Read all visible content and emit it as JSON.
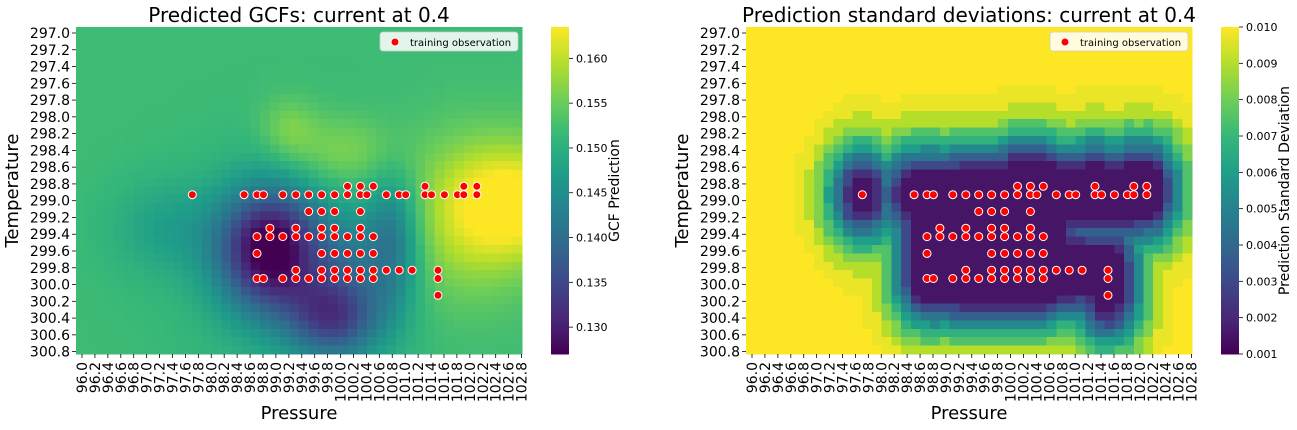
{
  "chart_data": [
    {
      "type": "heatmap",
      "title": "Predicted GCFs: current at 0.4",
      "xlabel": "Pressure",
      "ylabel": "Temperature",
      "x_ticks": [
        "96.0",
        "96.2",
        "96.4",
        "96.6",
        "96.8",
        "97.0",
        "97.2",
        "97.4",
        "97.6",
        "97.8",
        "98.0",
        "98.2",
        "98.4",
        "98.6",
        "98.8",
        "99.0",
        "99.2",
        "99.4",
        "99.6",
        "99.8",
        "100.0",
        "100.2",
        "100.4",
        "100.6",
        "100.8",
        "101.0",
        "101.2",
        "101.4",
        "101.6",
        "101.8",
        "102.0",
        "102.2",
        "102.4",
        "102.6",
        "102.8"
      ],
      "y_ticks": [
        "297.0",
        "297.2",
        "297.4",
        "297.6",
        "297.8",
        "298.0",
        "298.2",
        "298.4",
        "298.6",
        "298.8",
        "299.0",
        "299.2",
        "299.4",
        "299.6",
        "299.8",
        "300.0",
        "300.2",
        "300.4",
        "300.6",
        "300.8"
      ],
      "x_range": [
        96.0,
        102.9
      ],
      "y_range": [
        297.0,
        300.9
      ],
      "colormap": "viridis",
      "colorbar": {
        "label": "GCF Prediction",
        "range": [
          0.127,
          0.1635
        ],
        "ticks": [
          "0.130",
          "0.135",
          "0.140",
          "0.145",
          "0.150",
          "0.155",
          "0.160"
        ],
        "tick_values": [
          0.13,
          0.135,
          0.14,
          0.145,
          0.15,
          0.155,
          0.16
        ]
      },
      "legend": {
        "label": "training observation",
        "placement": "top-right"
      },
      "field_model": {
        "base": 0.152,
        "bumps": [
          {
            "px": 99.0,
            "ty": 299.65,
            "sx": 0.55,
            "sy": 0.5,
            "amp": -0.024
          },
          {
            "px": 100.0,
            "ty": 300.45,
            "sx": 0.5,
            "sy": 0.35,
            "amp": -0.016
          },
          {
            "px": 99.6,
            "ty": 299.9,
            "sx": 1.2,
            "sy": 0.9,
            "amp": -0.004
          },
          {
            "px": 97.4,
            "ty": 299.4,
            "sx": 0.6,
            "sy": 0.4,
            "amp": -0.004
          },
          {
            "px": 102.8,
            "ty": 299.1,
            "sx": 0.7,
            "sy": 0.5,
            "amp": 0.012
          },
          {
            "px": 101.9,
            "ty": 299.35,
            "sx": 0.7,
            "sy": 0.7,
            "amp": 0.006
          },
          {
            "px": 100.1,
            "ty": 298.5,
            "sx": 0.6,
            "sy": 0.3,
            "amp": 0.005
          },
          {
            "px": 99.3,
            "ty": 298.2,
            "sx": 0.3,
            "sy": 0.25,
            "amp": 0.004
          },
          {
            "px": 100.9,
            "ty": 299.55,
            "sx": 0.3,
            "sy": 0.55,
            "amp": -0.01
          },
          {
            "px": 100.2,
            "ty": 299.7,
            "sx": 0.35,
            "sy": 0.3,
            "amp": -0.004
          }
        ]
      }
    },
    {
      "type": "heatmap",
      "title": "Prediction standard deviations: current at 0.4",
      "xlabel": "Pressure",
      "ylabel": "Temperature",
      "x_ticks": [
        "96.0",
        "96.2",
        "96.4",
        "96.6",
        "96.8",
        "97.0",
        "97.2",
        "97.4",
        "97.6",
        "97.8",
        "98.0",
        "98.2",
        "98.4",
        "98.6",
        "98.8",
        "99.0",
        "99.2",
        "99.4",
        "99.6",
        "99.8",
        "100.0",
        "100.2",
        "100.4",
        "100.6",
        "100.8",
        "101.0",
        "101.2",
        "101.4",
        "101.6",
        "101.8",
        "102.0",
        "102.2",
        "102.4",
        "102.6",
        "102.8"
      ],
      "y_ticks": [
        "297.0",
        "297.2",
        "297.4",
        "297.6",
        "297.8",
        "298.0",
        "298.2",
        "298.4",
        "298.6",
        "298.8",
        "299.0",
        "299.2",
        "299.4",
        "299.6",
        "299.8",
        "300.0",
        "300.2",
        "300.4",
        "300.6",
        "300.8"
      ],
      "x_range": [
        96.0,
        102.9
      ],
      "y_range": [
        297.0,
        300.9
      ],
      "colormap": "viridis",
      "colorbar": {
        "label": "Prediction Standard Deviation",
        "range": [
          0.001,
          0.01
        ],
        "ticks": [
          "0.001",
          "0.002",
          "0.003",
          "0.004",
          "0.005",
          "0.006",
          "0.007",
          "0.008",
          "0.009",
          "0.010"
        ],
        "tick_values": [
          0.001,
          0.002,
          0.003,
          0.004,
          0.005,
          0.006,
          0.007,
          0.008,
          0.009,
          0.01
        ]
      },
      "legend": {
        "label": "training observation",
        "placement": "top-right"
      },
      "std_model": {
        "length_scale": 0.42,
        "floor": 0.0012,
        "cap": 0.0105,
        "step": 0.00075
      }
    }
  ],
  "training_observations": [
    {
      "p": 97.8,
      "t": 299.0
    },
    {
      "p": 98.6,
      "t": 299.0
    },
    {
      "p": 98.8,
      "t": 299.0
    },
    {
      "p": 98.9,
      "t": 299.0
    },
    {
      "p": 99.2,
      "t": 299.0
    },
    {
      "p": 99.4,
      "t": 299.0
    },
    {
      "p": 99.6,
      "t": 299.0
    },
    {
      "p": 99.8,
      "t": 299.0
    },
    {
      "p": 100.0,
      "t": 299.0
    },
    {
      "p": 100.2,
      "t": 299.0
    },
    {
      "p": 100.4,
      "t": 299.0
    },
    {
      "p": 100.5,
      "t": 299.0
    },
    {
      "p": 100.8,
      "t": 299.0
    },
    {
      "p": 101.0,
      "t": 299.0
    },
    {
      "p": 101.1,
      "t": 299.0
    },
    {
      "p": 101.4,
      "t": 299.0
    },
    {
      "p": 101.5,
      "t": 299.0
    },
    {
      "p": 101.7,
      "t": 299.0
    },
    {
      "p": 101.9,
      "t": 299.0
    },
    {
      "p": 102.0,
      "t": 299.0
    },
    {
      "p": 102.2,
      "t": 299.0
    },
    {
      "p": 100.2,
      "t": 298.9
    },
    {
      "p": 100.4,
      "t": 298.9
    },
    {
      "p": 100.6,
      "t": 298.9
    },
    {
      "p": 101.4,
      "t": 298.9
    },
    {
      "p": 102.0,
      "t": 298.9
    },
    {
      "p": 102.2,
      "t": 298.9
    },
    {
      "p": 99.6,
      "t": 299.2
    },
    {
      "p": 99.8,
      "t": 299.2
    },
    {
      "p": 100.0,
      "t": 299.2
    },
    {
      "p": 100.4,
      "t": 299.2
    },
    {
      "p": 99.0,
      "t": 299.4
    },
    {
      "p": 99.4,
      "t": 299.4
    },
    {
      "p": 99.8,
      "t": 299.4
    },
    {
      "p": 100.0,
      "t": 299.4
    },
    {
      "p": 100.4,
      "t": 299.4
    },
    {
      "p": 98.8,
      "t": 299.5
    },
    {
      "p": 99.0,
      "t": 299.5
    },
    {
      "p": 99.2,
      "t": 299.5
    },
    {
      "p": 99.4,
      "t": 299.5
    },
    {
      "p": 99.6,
      "t": 299.5
    },
    {
      "p": 99.8,
      "t": 299.5
    },
    {
      "p": 100.0,
      "t": 299.5
    },
    {
      "p": 100.2,
      "t": 299.5
    },
    {
      "p": 100.4,
      "t": 299.5
    },
    {
      "p": 100.6,
      "t": 299.5
    },
    {
      "p": 98.8,
      "t": 299.7
    },
    {
      "p": 99.8,
      "t": 299.7
    },
    {
      "p": 100.0,
      "t": 299.7
    },
    {
      "p": 100.2,
      "t": 299.7
    },
    {
      "p": 100.4,
      "t": 299.7
    },
    {
      "p": 100.6,
      "t": 299.7
    },
    {
      "p": 99.4,
      "t": 299.9
    },
    {
      "p": 99.8,
      "t": 299.9
    },
    {
      "p": 100.0,
      "t": 299.9
    },
    {
      "p": 100.2,
      "t": 299.9
    },
    {
      "p": 100.4,
      "t": 299.9
    },
    {
      "p": 100.6,
      "t": 299.9
    },
    {
      "p": 100.8,
      "t": 299.9
    },
    {
      "p": 101.0,
      "t": 299.9
    },
    {
      "p": 101.2,
      "t": 299.9
    },
    {
      "p": 101.6,
      "t": 299.9
    },
    {
      "p": 98.8,
      "t": 300.0
    },
    {
      "p": 98.9,
      "t": 300.0
    },
    {
      "p": 99.2,
      "t": 300.0
    },
    {
      "p": 99.4,
      "t": 300.0
    },
    {
      "p": 99.6,
      "t": 300.0
    },
    {
      "p": 99.8,
      "t": 300.0
    },
    {
      "p": 100.0,
      "t": 300.0
    },
    {
      "p": 100.2,
      "t": 300.0
    },
    {
      "p": 100.4,
      "t": 300.0
    },
    {
      "p": 100.6,
      "t": 300.0
    },
    {
      "p": 101.6,
      "t": 300.0
    },
    {
      "p": 101.6,
      "t": 300.2
    }
  ]
}
